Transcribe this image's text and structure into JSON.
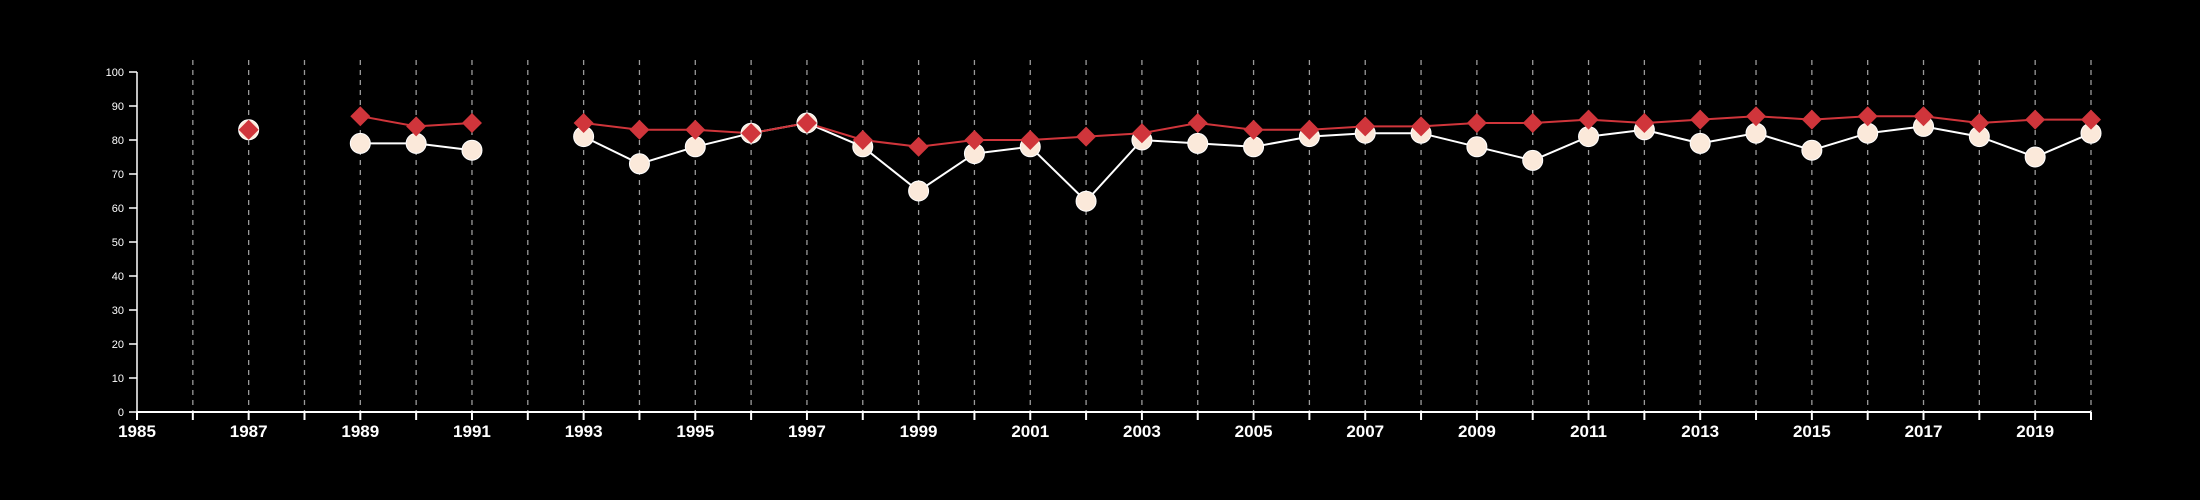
{
  "chart_data": {
    "type": "line",
    "title": "",
    "xlabel": "",
    "ylabel": "",
    "xlim": [
      1985,
      2020
    ],
    "ylim": [
      0,
      100
    ],
    "x_ticks": [
      1985,
      1987,
      1989,
      1991,
      1993,
      1995,
      1997,
      1999,
      2001,
      2003,
      2005,
      2007,
      2009,
      2011,
      2013,
      2015,
      2017,
      2019
    ],
    "y_ticks": [
      0,
      10,
      20,
      30,
      40,
      50,
      60,
      70,
      80,
      90,
      100
    ],
    "vertical_grid_years": [
      1986,
      1987,
      1988,
      1989,
      1990,
      1991,
      1992,
      1993,
      1994,
      1995,
      1996,
      1997,
      1998,
      1999,
      2000,
      2001,
      2002,
      2003,
      2004,
      2005,
      2006,
      2007,
      2008,
      2009,
      2010,
      2011,
      2012,
      2013,
      2014,
      2015,
      2016,
      2017,
      2018,
      2019,
      2020
    ],
    "grid": "vertical dashed",
    "background": "#000000",
    "series": [
      {
        "color": "#fbe9da",
        "line_color": "#ffffff",
        "marker": "circle",
        "points": [
          [
            1987,
            83
          ],
          [
            1989,
            79
          ],
          [
            1990,
            79
          ],
          [
            1991,
            77
          ],
          [
            1993,
            81
          ],
          [
            1994,
            73
          ],
          [
            1995,
            78
          ],
          [
            1996,
            82
          ],
          [
            1997,
            85
          ],
          [
            1998,
            78
          ],
          [
            1999,
            65
          ],
          [
            2000,
            76
          ],
          [
            2001,
            78
          ],
          [
            2002,
            62
          ],
          [
            2003,
            80
          ],
          [
            2004,
            79
          ],
          [
            2005,
            78
          ],
          [
            2006,
            81
          ],
          [
            2007,
            82
          ],
          [
            2008,
            82
          ],
          [
            2009,
            78
          ],
          [
            2010,
            74
          ],
          [
            2011,
            81
          ],
          [
            2012,
            83
          ],
          [
            2013,
            79
          ],
          [
            2014,
            82
          ],
          [
            2015,
            77
          ],
          [
            2016,
            82
          ],
          [
            2017,
            84
          ],
          [
            2018,
            81
          ],
          [
            2019,
            75
          ],
          [
            2020,
            82
          ]
        ]
      },
      {
        "color": "#d0353b",
        "line_color": "#d0353b",
        "marker": "diamond",
        "points": [
          [
            1987,
            83
          ],
          [
            1989,
            87
          ],
          [
            1990,
            84
          ],
          [
            1991,
            85
          ],
          [
            1993,
            85
          ],
          [
            1994,
            83
          ],
          [
            1995,
            83
          ],
          [
            1996,
            82
          ],
          [
            1997,
            85
          ],
          [
            1998,
            80
          ],
          [
            1999,
            78
          ],
          [
            2000,
            80
          ],
          [
            2001,
            80
          ],
          [
            2002,
            81
          ],
          [
            2003,
            82
          ],
          [
            2004,
            85
          ],
          [
            2005,
            83
          ],
          [
            2006,
            83
          ],
          [
            2007,
            84
          ],
          [
            2008,
            84
          ],
          [
            2009,
            85
          ],
          [
            2010,
            85
          ],
          [
            2011,
            86
          ],
          [
            2012,
            85
          ],
          [
            2013,
            86
          ],
          [
            2014,
            87
          ],
          [
            2015,
            86
          ],
          [
            2016,
            87
          ],
          [
            2017,
            87
          ],
          [
            2018,
            85
          ],
          [
            2019,
            86
          ],
          [
            2020,
            86
          ]
        ]
      }
    ]
  }
}
